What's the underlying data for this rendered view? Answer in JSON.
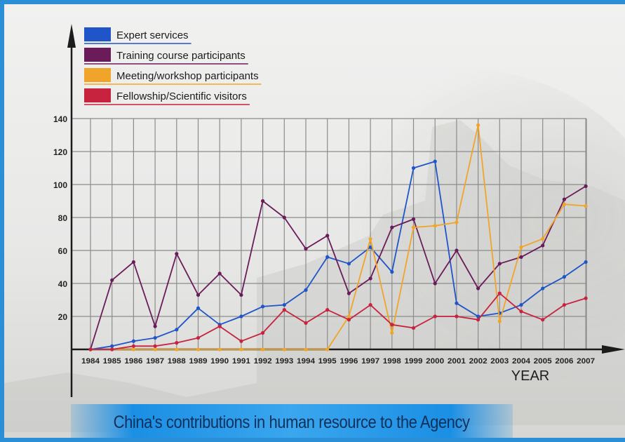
{
  "caption": "China's contributions in human resource to the Agency",
  "chart_data": {
    "type": "line",
    "xlabel": "YEAR",
    "ylim": [
      0,
      140
    ],
    "yticks": [
      20,
      40,
      60,
      80,
      100,
      120,
      140
    ],
    "grid": true,
    "legend_position": "top-left",
    "categories": [
      "1984",
      "1985",
      "1986",
      "1987",
      "1988",
      "1989",
      "1990",
      "1991",
      "1992",
      "1993",
      "1994",
      "1995",
      "1996",
      "1997",
      "1998",
      "1999",
      "2000",
      "2001",
      "2002",
      "2003",
      "2004",
      "2005",
      "2006",
      "2007"
    ],
    "series": [
      {
        "name": "Expert services",
        "color": "#1f55c8",
        "values": [
          0,
          2,
          5,
          7,
          12,
          25,
          15,
          20,
          26,
          27,
          36,
          56,
          52,
          62,
          47,
          110,
          114,
          28,
          20,
          22,
          27,
          37,
          44,
          53
        ]
      },
      {
        "name": "Training course participants",
        "color": "#6a1b5a",
        "values": [
          0,
          42,
          53,
          14,
          58,
          33,
          46,
          33,
          90,
          80,
          61,
          69,
          34,
          43,
          74,
          79,
          40,
          60,
          37,
          52,
          56,
          63,
          91,
          99
        ]
      },
      {
        "name": "Meeting/workshop participants",
        "color": "#f0a52a",
        "values": [
          0,
          0,
          0,
          0,
          0,
          0,
          0,
          0,
          0,
          0,
          0,
          0,
          20,
          67,
          10,
          74,
          75,
          77,
          136,
          17,
          62,
          67,
          88,
          87
        ]
      },
      {
        "name": "Fellowship/Scientific visitors",
        "color": "#c8233e",
        "values": [
          0,
          0,
          2,
          2,
          4,
          7,
          14,
          5,
          10,
          24,
          16,
          24,
          18,
          27,
          15,
          13,
          20,
          20,
          18,
          34,
          23,
          18,
          27,
          31
        ]
      }
    ]
  },
  "icons": {
    "y_axis_arrow": "arrow-up",
    "x_axis_arrow": "arrow-right"
  }
}
